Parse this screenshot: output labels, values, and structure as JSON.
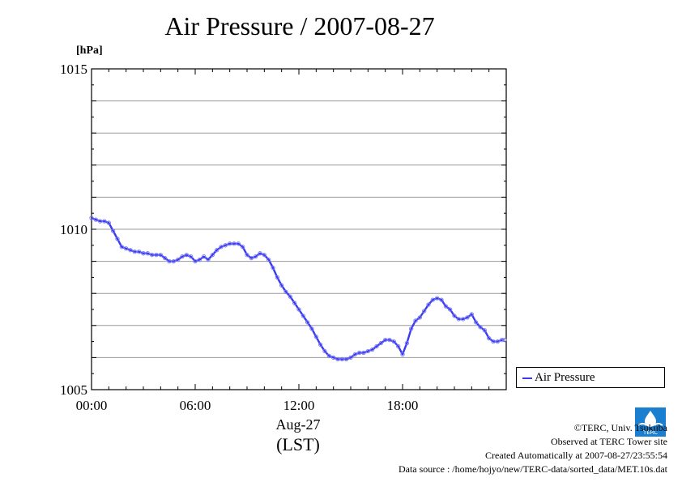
{
  "chart_data": {
    "type": "line",
    "title": "Air Pressure / 2007-08-27",
    "ylabel": "[hPa]",
    "xlabel": "Aug-27",
    "xlabel_sub": "(LST)",
    "ylim": [
      1005,
      1015
    ],
    "xlim": [
      0,
      24
    ],
    "y_ticks": [
      1005,
      1010,
      1015
    ],
    "y_tick_labels": [
      "1005",
      "1010",
      "1015"
    ],
    "y_gridlines": [
      1006,
      1007,
      1008,
      1009,
      1010,
      1011,
      1012,
      1013,
      1014
    ],
    "x_ticks": [
      0,
      6,
      12,
      18
    ],
    "x_tick_labels": [
      "00:00",
      "06:00",
      "12:00",
      "18:00"
    ],
    "grid": true,
    "legend_position": "right-bottom",
    "series": [
      {
        "name": "Air Pressure",
        "color": "#3a3af0",
        "x": [
          0,
          0.25,
          0.5,
          0.75,
          1.0,
          1.25,
          1.5,
          1.75,
          2.0,
          2.25,
          2.5,
          2.75,
          3.0,
          3.25,
          3.5,
          3.75,
          4.0,
          4.25,
          4.5,
          4.75,
          5.0,
          5.25,
          5.5,
          5.75,
          6.0,
          6.25,
          6.5,
          6.75,
          7.0,
          7.25,
          7.5,
          7.75,
          8.0,
          8.25,
          8.5,
          8.75,
          9.0,
          9.25,
          9.5,
          9.75,
          10.0,
          10.25,
          10.5,
          10.75,
          11.0,
          11.25,
          11.5,
          11.75,
          12.0,
          12.25,
          12.5,
          12.75,
          13.0,
          13.25,
          13.5,
          13.75,
          14.0,
          14.25,
          14.5,
          14.75,
          15.0,
          15.25,
          15.5,
          15.75,
          16.0,
          16.25,
          16.5,
          16.75,
          17.0,
          17.25,
          17.5,
          17.75,
          18.0,
          18.25,
          18.5,
          18.75,
          19.0,
          19.25,
          19.5,
          19.75,
          20.0,
          20.25,
          20.5,
          20.75,
          21.0,
          21.25,
          21.5,
          21.75,
          22.0,
          22.25,
          22.5,
          22.75,
          23.0,
          23.25,
          23.5,
          23.75,
          23.9
        ],
        "values": [
          1010.35,
          1010.3,
          1010.25,
          1010.25,
          1010.2,
          1009.95,
          1009.7,
          1009.45,
          1009.4,
          1009.35,
          1009.3,
          1009.3,
          1009.25,
          1009.25,
          1009.2,
          1009.2,
          1009.2,
          1009.1,
          1009.0,
          1009.0,
          1009.05,
          1009.15,
          1009.2,
          1009.15,
          1009.0,
          1009.05,
          1009.15,
          1009.05,
          1009.2,
          1009.35,
          1009.45,
          1009.5,
          1009.55,
          1009.55,
          1009.55,
          1009.45,
          1009.2,
          1009.1,
          1009.15,
          1009.25,
          1009.2,
          1009.05,
          1008.8,
          1008.5,
          1008.25,
          1008.05,
          1007.9,
          1007.7,
          1007.5,
          1007.3,
          1007.1,
          1006.9,
          1006.65,
          1006.4,
          1006.2,
          1006.05,
          1006.0,
          1005.95,
          1005.95,
          1005.95,
          1006.0,
          1006.1,
          1006.15,
          1006.15,
          1006.2,
          1006.25,
          1006.35,
          1006.45,
          1006.55,
          1006.55,
          1006.5,
          1006.35,
          1006.1,
          1006.45,
          1006.9,
          1007.15,
          1007.25,
          1007.45,
          1007.65,
          1007.8,
          1007.85,
          1007.8,
          1007.6,
          1007.5,
          1007.3,
          1007.2,
          1007.2,
          1007.25,
          1007.35,
          1007.1,
          1006.95,
          1006.85,
          1006.6,
          1006.5,
          1006.5,
          1006.55,
          1006.55
        ]
      }
    ]
  },
  "legend": {
    "label": "Air Pressure"
  },
  "credits": {
    "line1": "©TERC, Univ. Tsukuba",
    "line2": "Observed at TERC Tower site",
    "line3": "Created Automatically at 2007-08-27/23:55:54",
    "line4": "Data source : /home/hojyo/new/TERC-data/sorted_data/MET.10s.dat"
  },
  "logo": {
    "text": "TERC",
    "icon": "terc-logo-icon",
    "color": "#1a7fd0"
  }
}
